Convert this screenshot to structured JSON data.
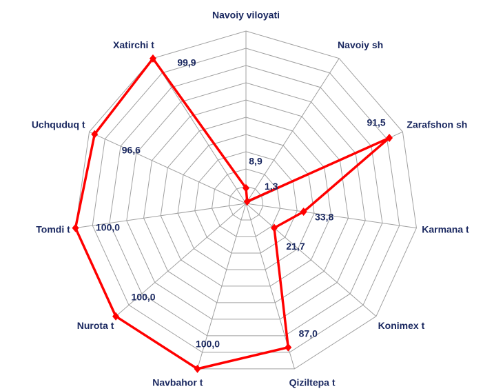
{
  "chart_data": {
    "type": "radar",
    "categories": [
      "Navoiy viloyati",
      "Navoiy sh",
      "Zarafshon sh",
      "Karmana t",
      "Konimex t",
      "Qiziltepa t",
      "Navbahor t",
      "Nurota t",
      "Tomdi t",
      "Uchquduq t",
      "Xatirchi t"
    ],
    "values": [
      8.9,
      1.3,
      91.5,
      33.8,
      21.7,
      87.0,
      100.0,
      100.0,
      100.0,
      96.6,
      99.9
    ],
    "value_labels": [
      "8,9",
      "1,3",
      "91,5",
      "33,8",
      "21,7",
      "87,0",
      "100,0",
      "100,0",
      "100,0",
      "96,6",
      "99,9"
    ],
    "color": "#ff0000",
    "ylim": [
      0,
      100
    ],
    "yticks": [
      0,
      10,
      20,
      30,
      40,
      50,
      60,
      70,
      80,
      90,
      100
    ],
    "grid": true
  }
}
